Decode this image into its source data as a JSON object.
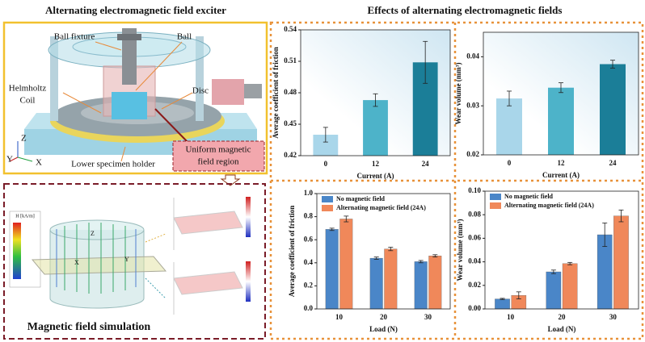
{
  "exciter": {
    "title": "Alternating electromagnetic field exciter",
    "ball_fixture": "Ball fixture",
    "ball": "Ball",
    "helmholtz_coil": [
      "Helmholtz",
      "Coil"
    ],
    "disc": "Disc",
    "lower_specimen_holder": "Lower specimen holder",
    "field_region": [
      "Uniform magnetic",
      "field region"
    ],
    "axes": [
      "Z",
      "Y",
      "X"
    ]
  },
  "simulation": {
    "title": "Magnetic field simulation",
    "legend_title": "H [kA/m]",
    "axes": [
      "X",
      "Y",
      "Z"
    ]
  },
  "effects_title": "Effects of alternating electromagnetic fields",
  "chart_data": [
    {
      "type": "bar",
      "x_label": "Current (A)",
      "y_label": "Average coefficient of friction",
      "categories": [
        "0",
        "12",
        "24"
      ],
      "values": [
        0.44,
        0.473,
        0.509
      ],
      "errors": [
        0.007,
        0.006,
        0.02
      ],
      "colors": [
        "#a9d6ea",
        "#4db3c9",
        "#1b7e98"
      ],
      "ylim": [
        0.42,
        0.54
      ],
      "yticks": [
        0.42,
        0.45,
        0.48,
        0.51,
        0.54
      ]
    },
    {
      "type": "bar",
      "x_label": "Current (A)",
      "y_label": "Wear volume (mm³)",
      "categories": [
        "0",
        "12",
        "24"
      ],
      "values": [
        0.0315,
        0.0337,
        0.0385
      ],
      "errors": [
        0.0015,
        0.001,
        0.0008
      ],
      "colors": [
        "#a9d6ea",
        "#4db3c9",
        "#1b7e98"
      ],
      "ylim": [
        0.02,
        0.045
      ],
      "yticks": [
        0.02,
        0.03,
        0.04
      ]
    },
    {
      "type": "bar",
      "x_label": "Load (N)",
      "y_label": "Average coefficient of friction",
      "categories": [
        "10",
        "20",
        "30"
      ],
      "series": [
        {
          "name": "No magnetic field",
          "color": "#4a86c8",
          "values": [
            0.69,
            0.44,
            0.41
          ],
          "errors": [
            0.01,
            0.01,
            0.01
          ]
        },
        {
          "name": "Alternating magnetic field (24A)",
          "color": "#f0885a",
          "values": [
            0.78,
            0.52,
            0.46
          ],
          "errors": [
            0.025,
            0.015,
            0.01
          ]
        }
      ],
      "ylim": [
        0,
        1.0
      ],
      "yticks": [
        {
          "value": 0,
          "label": "0.0"
        },
        0.2,
        0.4,
        0.6,
        0.8,
        {
          "value": 1,
          "label": "1.0"
        }
      ]
    },
    {
      "type": "bar",
      "x_label": "Load (N)",
      "y_label": "Wear volume (mm³)",
      "categories": [
        "10",
        "20",
        "30"
      ],
      "series": [
        {
          "name": "No magnetic field",
          "color": "#4a86c8",
          "values": [
            0.0085,
            0.0315,
            0.063
          ],
          "errors": [
            0.0005,
            0.0015,
            0.01
          ]
        },
        {
          "name": "Alternating magnetic field  (24A)",
          "color": "#f0885a",
          "values": [
            0.0115,
            0.0385,
            0.079
          ],
          "errors": [
            0.003,
            0.001,
            0.005
          ]
        }
      ],
      "ylim": [
        0,
        0.1
      ],
      "yticks": [
        {
          "value": 0,
          "label": "0.00"
        },
        0.02,
        0.04,
        0.06,
        0.08,
        {
          "value": 0.1,
          "label": "0.10"
        }
      ]
    }
  ]
}
